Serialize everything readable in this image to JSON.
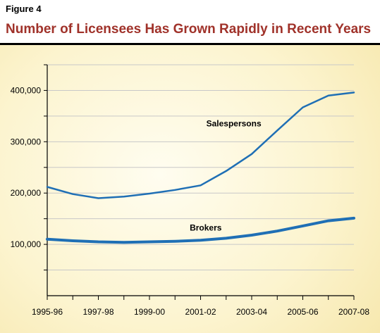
{
  "figure_label": "Figure 4",
  "title": "Number of Licensees Has Grown Rapidly in Recent Years",
  "colors": {
    "title": "#a0322a",
    "line": "#1f6fb5",
    "grid": "#c8c8c8",
    "axis": "#000000"
  },
  "chart_data": {
    "type": "line",
    "title": "Number of Licensees Has Grown Rapidly in Recent Years",
    "xlabel": "",
    "ylabel": "",
    "categories": [
      "1995-96",
      "1996-97",
      "1997-98",
      "1998-99",
      "1999-00",
      "2000-01",
      "2001-02",
      "2002-03",
      "2003-04",
      "2004-05",
      "2005-06",
      "2006-07",
      "2007-08"
    ],
    "x_tick_labels": [
      "1995-96",
      "1997-98",
      "1999-00",
      "2001-02",
      "2003-04",
      "2005-06",
      "2007-08"
    ],
    "y_tick_labels": [
      "100,000",
      "200,000",
      "300,000",
      "400,000"
    ],
    "y_ticks": [
      100000,
      200000,
      300000,
      400000
    ],
    "ylim": [
      0,
      450000
    ],
    "grid": "horizontal",
    "legend": "none (series labeled directly on chart)",
    "series": [
      {
        "name": "Salespersons",
        "values": [
          212000,
          198000,
          190000,
          193000,
          199000,
          206000,
          215000,
          243000,
          276000,
          322000,
          367000,
          390000,
          396000
        ]
      },
      {
        "name": "Brokers",
        "values": [
          110000,
          107000,
          105000,
          104000,
          105000,
          106000,
          108000,
          112000,
          118000,
          126000,
          136000,
          146000,
          151000
        ]
      }
    ]
  }
}
